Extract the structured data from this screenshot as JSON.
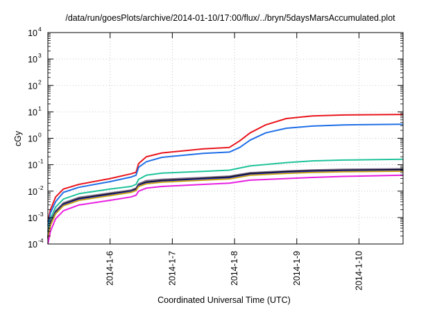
{
  "chart_data": {
    "type": "line",
    "title": "/data/run/goesPlots/archive/2014-01-10/17:00/flux/../bryn/5daysMarsAccumulated.plot",
    "xlabel": "Coordinated Universal Time (UTC)",
    "ylabel": "cGy",
    "y_scale": "log",
    "ylim": [
      0.0001,
      10000
    ],
    "xlim": [
      "2014-01-05 00:00",
      "2014-01-10 17:00"
    ],
    "x_ticks": [
      "2014-1-6",
      "2014-1-7",
      "2014-1-8",
      "2014-1-9",
      "2014-1-10"
    ],
    "y_ticks": [
      {
        "base": "10",
        "exp": "-4"
      },
      {
        "base": "10",
        "exp": "-3"
      },
      {
        "base": "10",
        "exp": "-2"
      },
      {
        "base": "10",
        "exp": "-1"
      },
      {
        "base": "10",
        "exp": "0"
      },
      {
        "base": "10",
        "exp": "1"
      },
      {
        "base": "10",
        "exp": "2"
      },
      {
        "base": "10",
        "exp": "3"
      },
      {
        "base": "10",
        "exp": "4"
      }
    ],
    "grid": true,
    "legend": "none",
    "series": [
      {
        "color": "#e8141c",
        "x": [
          "2014-01-05 00:00",
          "2014-01-05 01:00",
          "2014-01-05 03:00",
          "2014-01-05 06:00",
          "2014-01-05 12:00",
          "2014-01-06 00:00",
          "2014-01-06 08:00",
          "2014-01-06 10:00",
          "2014-01-06 11:00",
          "2014-01-06 14:00",
          "2014-01-06 20:00",
          "2014-01-07 12:00",
          "2014-01-07 22:00",
          "2014-01-08 02:00",
          "2014-01-08 06:00",
          "2014-01-08 12:00",
          "2014-01-08 20:00",
          "2014-01-09 06:00",
          "2014-01-09 18:00",
          "2014-01-10 17:00"
        ],
        "y": [
          0.0007,
          0.002,
          0.006,
          0.012,
          0.018,
          0.03,
          0.045,
          0.052,
          0.11,
          0.2,
          0.28,
          0.4,
          0.45,
          0.8,
          1.6,
          3.2,
          5.6,
          7.0,
          7.6,
          8.0
        ]
      },
      {
        "color": "#1e6ee6",
        "x": [
          "2014-01-05 00:00",
          "2014-01-05 01:00",
          "2014-01-05 03:00",
          "2014-01-05 06:00",
          "2014-01-05 12:00",
          "2014-01-06 00:00",
          "2014-01-06 08:00",
          "2014-01-06 10:00",
          "2014-01-06 11:00",
          "2014-01-06 14:00",
          "2014-01-06 20:00",
          "2014-01-07 12:00",
          "2014-01-07 22:00",
          "2014-01-08 02:00",
          "2014-01-08 06:00",
          "2014-01-08 12:00",
          "2014-01-08 20:00",
          "2014-01-09 06:00",
          "2014-01-09 18:00",
          "2014-01-10 17:00"
        ],
        "y": [
          0.0005,
          0.0015,
          0.004,
          0.009,
          0.014,
          0.023,
          0.034,
          0.04,
          0.08,
          0.13,
          0.19,
          0.27,
          0.3,
          0.45,
          0.85,
          1.6,
          2.4,
          2.9,
          3.2,
          3.4
        ]
      },
      {
        "color": "#1ec39a",
        "x": [
          "2014-01-05 00:00",
          "2014-01-05 01:00",
          "2014-01-05 03:00",
          "2014-01-05 06:00",
          "2014-01-05 12:00",
          "2014-01-06 00:00",
          "2014-01-06 08:00",
          "2014-01-06 10:00",
          "2014-01-06 11:00",
          "2014-01-06 14:00",
          "2014-01-06 20:00",
          "2014-01-07 12:00",
          "2014-01-07 22:00",
          "2014-01-08 06:00",
          "2014-01-08 20:00",
          "2014-01-09 06:00",
          "2014-01-09 18:00",
          "2014-01-10 17:00"
        ],
        "y": [
          0.0003,
          0.0009,
          0.0025,
          0.005,
          0.008,
          0.012,
          0.015,
          0.018,
          0.028,
          0.04,
          0.048,
          0.056,
          0.062,
          0.09,
          0.12,
          0.14,
          0.15,
          0.16
        ]
      },
      {
        "color": "#7a6a8a",
        "x": [
          "2014-01-05 00:00",
          "2014-01-05 01:00",
          "2014-01-05 03:00",
          "2014-01-05 06:00",
          "2014-01-05 12:00",
          "2014-01-06 00:00",
          "2014-01-06 08:00",
          "2014-01-06 10:00",
          "2014-01-06 11:00",
          "2014-01-06 14:00",
          "2014-01-06 20:00",
          "2014-01-07 12:00",
          "2014-01-07 22:00",
          "2014-01-08 06:00",
          "2014-01-08 20:00",
          "2014-01-09 06:00",
          "2014-01-09 18:00",
          "2014-01-10 17:00"
        ],
        "y": [
          0.0002,
          0.0007,
          0.0018,
          0.0036,
          0.0058,
          0.0085,
          0.011,
          0.013,
          0.019,
          0.025,
          0.028,
          0.033,
          0.037,
          0.05,
          0.058,
          0.063,
          0.067,
          0.07
        ]
      },
      {
        "color": "#0a0a14",
        "x": [
          "2014-01-05 00:00",
          "2014-01-05 01:00",
          "2014-01-05 03:00",
          "2014-01-05 06:00",
          "2014-01-05 12:00",
          "2014-01-06 00:00",
          "2014-01-06 08:00",
          "2014-01-06 10:00",
          "2014-01-06 11:00",
          "2014-01-06 14:00",
          "2014-01-06 20:00",
          "2014-01-07 12:00",
          "2014-01-07 22:00",
          "2014-01-08 06:00",
          "2014-01-08 20:00",
          "2014-01-09 06:00",
          "2014-01-09 18:00",
          "2014-01-10 17:00"
        ],
        "y": [
          0.00018,
          0.0006,
          0.0016,
          0.0032,
          0.0052,
          0.0078,
          0.01,
          0.012,
          0.017,
          0.022,
          0.025,
          0.03,
          0.034,
          0.046,
          0.054,
          0.058,
          0.061,
          0.065
        ]
      },
      {
        "color": "#1e2ee0",
        "x": [
          "2014-01-05 00:00",
          "2014-01-05 01:00",
          "2014-01-05 03:00",
          "2014-01-05 06:00",
          "2014-01-05 12:00",
          "2014-01-06 00:00",
          "2014-01-06 08:00",
          "2014-01-06 10:00",
          "2014-01-06 11:00",
          "2014-01-06 14:00",
          "2014-01-06 20:00",
          "2014-01-07 12:00",
          "2014-01-07 22:00",
          "2014-01-08 06:00",
          "2014-01-08 20:00",
          "2014-01-09 06:00",
          "2014-01-09 18:00",
          "2014-01-10 17:00"
        ],
        "y": [
          0.00016,
          0.00055,
          0.0015,
          0.003,
          0.0048,
          0.0072,
          0.0095,
          0.011,
          0.016,
          0.02,
          0.023,
          0.028,
          0.031,
          0.042,
          0.05,
          0.054,
          0.057,
          0.06
        ]
      },
      {
        "color": "#c8a014",
        "x": [
          "2014-01-05 00:00",
          "2014-01-05 01:00",
          "2014-01-05 03:00",
          "2014-01-05 06:00",
          "2014-01-05 12:00",
          "2014-01-06 00:00",
          "2014-01-06 08:00",
          "2014-01-06 10:00",
          "2014-01-06 11:00",
          "2014-01-06 14:00",
          "2014-01-06 20:00",
          "2014-01-07 12:00",
          "2014-01-07 22:00",
          "2014-01-08 06:00",
          "2014-01-08 20:00",
          "2014-01-09 06:00",
          "2014-01-09 18:00",
          "2014-01-10 17:00"
        ],
        "y": [
          0.00015,
          0.0005,
          0.0014,
          0.0028,
          0.0045,
          0.0068,
          0.009,
          0.0105,
          0.015,
          0.019,
          0.022,
          0.026,
          0.029,
          0.04,
          0.047,
          0.051,
          0.054,
          0.057
        ]
      },
      {
        "color": "#e81ee0",
        "x": [
          "2014-01-05 00:00",
          "2014-01-05 01:00",
          "2014-01-05 03:00",
          "2014-01-05 06:00",
          "2014-01-05 12:00",
          "2014-01-06 00:00",
          "2014-01-06 08:00",
          "2014-01-06 10:00",
          "2014-01-06 11:00",
          "2014-01-06 14:00",
          "2014-01-06 20:00",
          "2014-01-07 12:00",
          "2014-01-07 22:00",
          "2014-01-08 06:00",
          "2014-01-08 20:00",
          "2014-01-09 06:00",
          "2014-01-09 18:00",
          "2014-01-10 17:00"
        ],
        "y": [
          0.0001,
          0.0003,
          0.0009,
          0.0018,
          0.003,
          0.0045,
          0.006,
          0.007,
          0.01,
          0.013,
          0.015,
          0.018,
          0.02,
          0.026,
          0.03,
          0.033,
          0.036,
          0.04
        ]
      }
    ]
  }
}
